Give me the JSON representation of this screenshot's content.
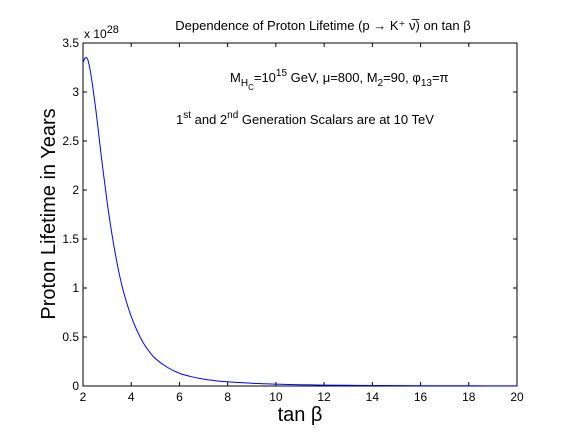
{
  "chart_data": {
    "type": "line",
    "title": "Dependence of Proton Lifetime (p → K⁺ ν̅) on tan β",
    "xlabel": "tan β",
    "ylabel": "Proton Lifetime in Years",
    "y_multiplier": "x 10",
    "y_multiplier_exp": "28",
    "xlim": [
      2,
      20
    ],
    "ylim": [
      0,
      3.5
    ],
    "x_ticks": [
      "2",
      "4",
      "6",
      "8",
      "10",
      "12",
      "14",
      "16",
      "18",
      "20"
    ],
    "y_ticks": [
      "0",
      "0.5",
      "1",
      "1.5",
      "2",
      "2.5",
      "3",
      "3.5"
    ],
    "grid": false,
    "line_color": "#0000ff",
    "series": [
      {
        "x": [
          2.0,
          2.1,
          2.2,
          2.3,
          2.4,
          2.5,
          2.6,
          2.8,
          3.0,
          3.2,
          3.4,
          3.6,
          3.8,
          4.0,
          4.25,
          4.5,
          4.75,
          5.0,
          5.5,
          6.0,
          6.5,
          7.0,
          7.5,
          8.0,
          9.0,
          10.0,
          11.0,
          12.0,
          13.0,
          14.0,
          16.0,
          18.0,
          20.0
        ],
        "y": [
          3.3,
          3.35,
          3.33,
          3.22,
          3.06,
          2.88,
          2.68,
          2.26,
          1.88,
          1.55,
          1.27,
          1.04,
          0.86,
          0.71,
          0.56,
          0.44,
          0.35,
          0.28,
          0.19,
          0.13,
          0.095,
          0.07,
          0.054,
          0.043,
          0.028,
          0.019,
          0.013,
          0.0095,
          0.007,
          0.005,
          0.003,
          0.002,
          0.0015
        ]
      }
    ]
  },
  "annotations": {
    "line1": {
      "m": "M",
      "m_sub": "H",
      "m_subsub": "C",
      "eq1": "=10",
      "eq1_sup": "15",
      "rest1": " GeV, μ=800, M",
      "m2_sub": "2",
      "rest2": "=90, φ",
      "phi_sub": "13",
      "rest3": "=π"
    },
    "line2": {
      "a": "1",
      "a_sup": "st",
      "b": " and 2",
      "b_sup": "nd",
      "c": " Generation Scalars are at 10 TeV"
    }
  }
}
